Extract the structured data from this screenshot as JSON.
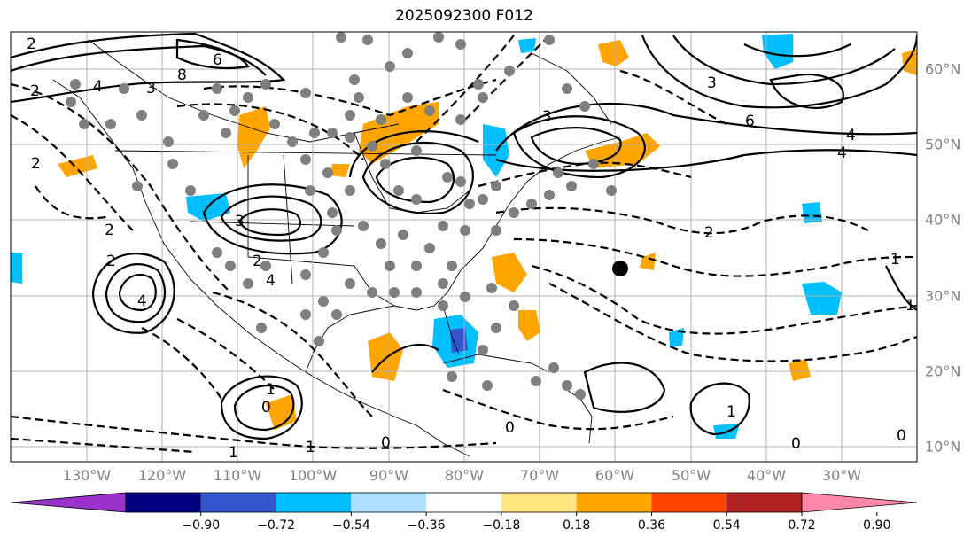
{
  "title": "2025092300 F012",
  "lon_labels": [
    "130°W",
    "120°W",
    "110°W",
    "100°W",
    "90°W",
    "80°W",
    "70°W",
    "60°W",
    "50°W",
    "40°W",
    "30°W"
  ],
  "lat_labels": [
    "60°N",
    "50°N",
    "40°N",
    "30°N",
    "20°N",
    "10°N"
  ],
  "colorbar": {
    "ticks": [
      "−0.90",
      "−0.72",
      "−0.54",
      "−0.36",
      "−0.18",
      "0.18",
      "0.36",
      "0.54",
      "0.72",
      "0.90"
    ],
    "colors": [
      "#9933cc",
      "#000080",
      "#3355cc",
      "#00bfff",
      "#b0e0ff",
      "#ffffff",
      "#ffe680",
      "#ffa500",
      "#ff4500",
      "#b22222",
      "#ff88aa"
    ]
  },
  "contour_labels": [
    "2",
    "4",
    "6",
    "8",
    "3",
    "3",
    "6",
    "4",
    "4",
    "2",
    "1",
    "3",
    "4",
    "4",
    "3",
    "2",
    "1",
    "0",
    "0",
    "0",
    "1",
    "1",
    "0",
    "1",
    "2",
    "2",
    "2",
    "2",
    "0",
    "1"
  ],
  "marker": "filled-circle"
}
